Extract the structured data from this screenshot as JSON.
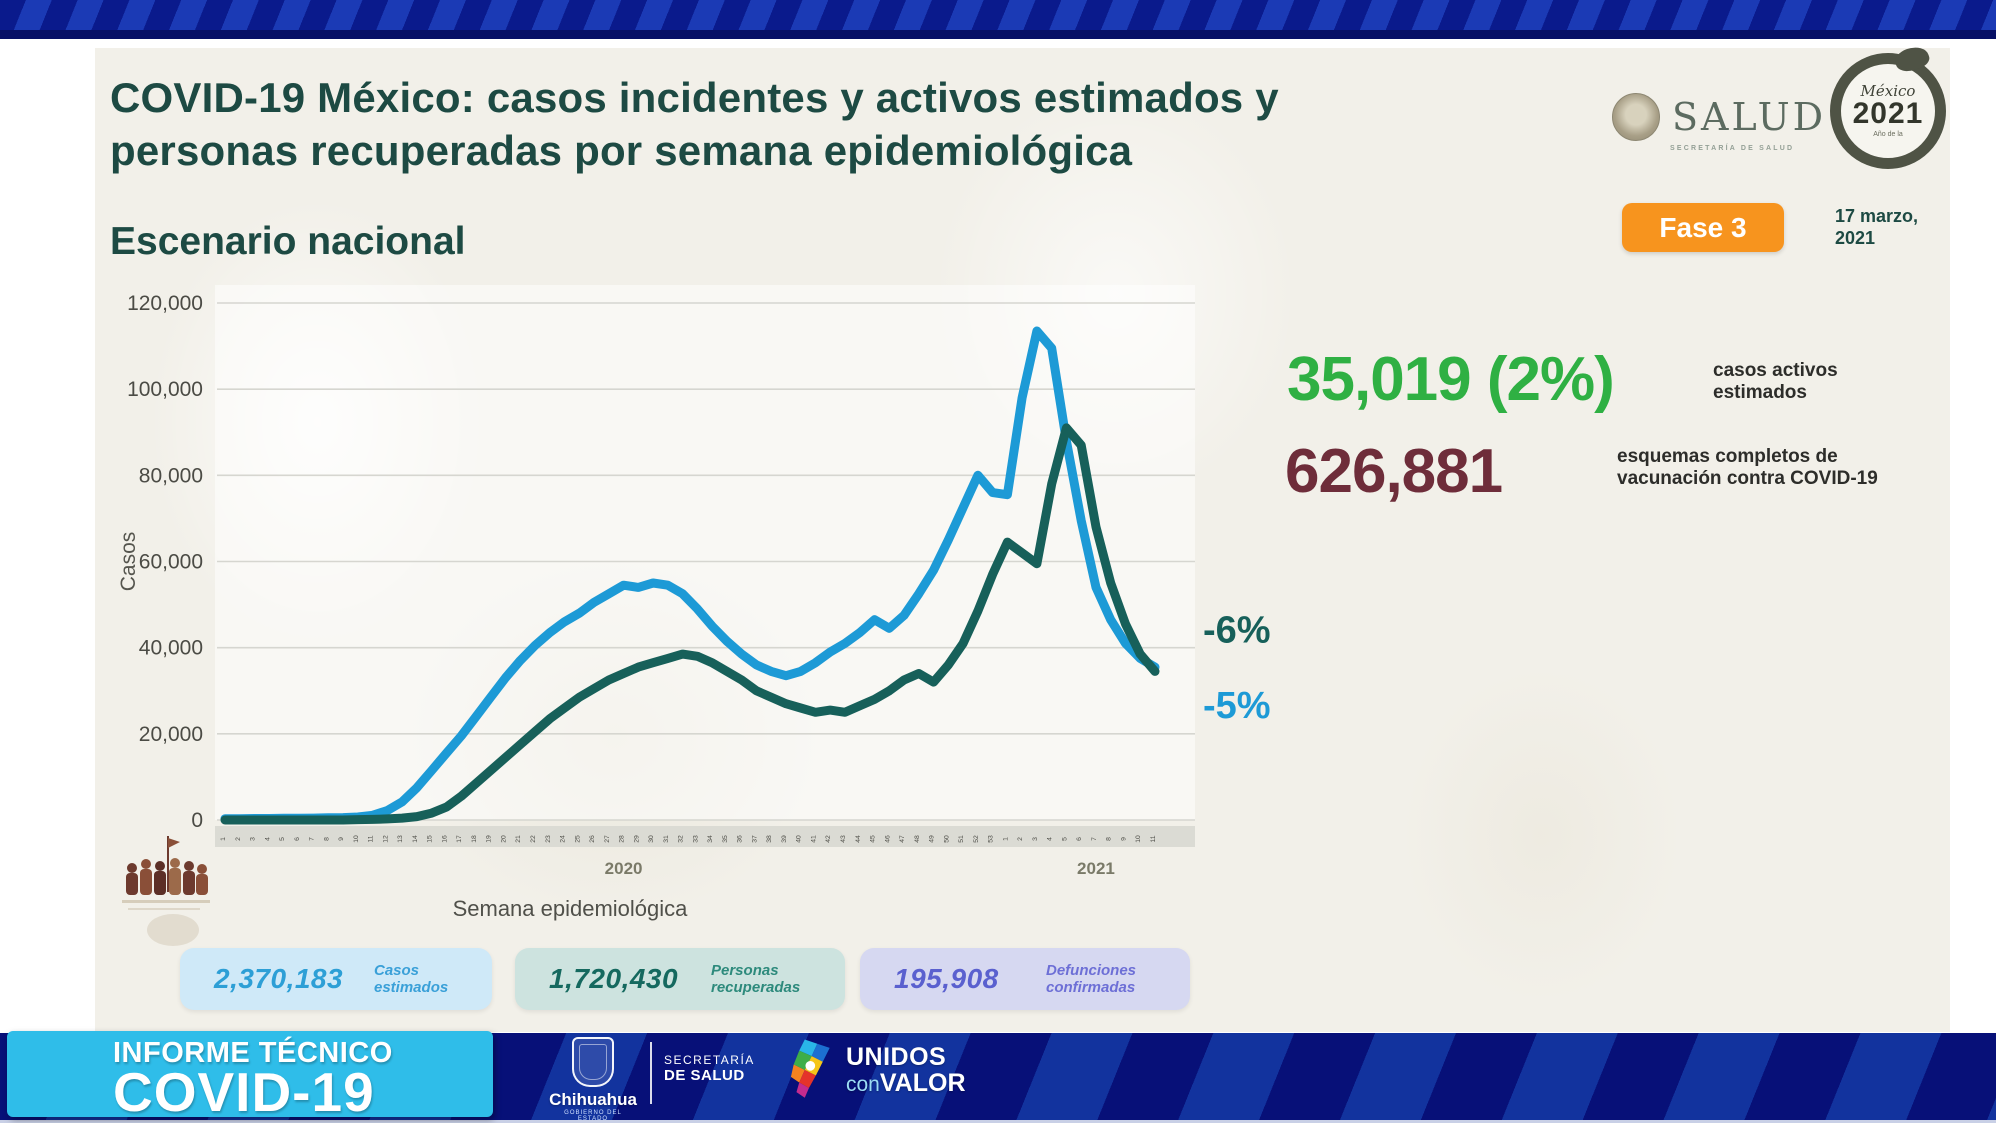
{
  "header": {
    "title_line1": "COVID-19 México: casos incidentes y activos estimados y",
    "title_line2": "personas recuperadas por semana epidemiológica",
    "subtitle": "Escenario nacional",
    "salud": {
      "wordmark": "SALUD",
      "caption": "SECRETARÍA DE SALUD"
    },
    "mexico_badge": {
      "line1": "México",
      "line2": "2021",
      "line3": "Año de la"
    },
    "fase_badge": "Fase 3",
    "date_line1": "17 marzo,",
    "date_line2": "2021"
  },
  "chart_data": {
    "type": "line",
    "title": "Escenario nacional",
    "xlabel": "Semana epidemiológica",
    "ylabel": "Casos",
    "ylim": [
      0,
      120000
    ],
    "yticks": [
      0,
      20000,
      40000,
      60000,
      80000,
      100000,
      120000
    ],
    "ytick_labels": [
      "0",
      "20,000",
      "40,000",
      "60,000",
      "80,000",
      "100,000",
      "120,000"
    ],
    "grid": true,
    "legend_position": "none",
    "x_groups": [
      {
        "year": "2020",
        "weeks": [
          1,
          2,
          3,
          4,
          5,
          6,
          7,
          8,
          9,
          10,
          11,
          12,
          13,
          14,
          15,
          16,
          17,
          18,
          19,
          20,
          21,
          22,
          23,
          24,
          25,
          26,
          27,
          28,
          29,
          30,
          31,
          32,
          33,
          34,
          35,
          36,
          37,
          38,
          39,
          40,
          41,
          42,
          43,
          44,
          45,
          46,
          47,
          48,
          49,
          50,
          51,
          52,
          53
        ]
      },
      {
        "year": "2021",
        "weeks": [
          1,
          2,
          3,
          4,
          5,
          6,
          7,
          8,
          9,
          10,
          11
        ]
      }
    ],
    "series": [
      {
        "name": "Casos incidentes estimados",
        "color": "#1d9ad6",
        "values": [
          300,
          300,
          350,
          350,
          400,
          400,
          450,
          500,
          550,
          700,
          1100,
          2200,
          4200,
          7500,
          11500,
          15500,
          19500,
          24000,
          28500,
          33000,
          37000,
          40500,
          43500,
          46000,
          48000,
          50500,
          52500,
          54500,
          54000,
          55000,
          54500,
          52500,
          49000,
          45000,
          41500,
          38500,
          36000,
          34500,
          33500,
          34500,
          36500,
          39000,
          41000,
          43500,
          46500,
          44500,
          47500,
          52500,
          58000,
          65000,
          72500,
          80000,
          76000,
          75500,
          98000,
          113500,
          109500,
          88000,
          69500,
          54000,
          46500,
          41000,
          37500,
          35500
        ]
      },
      {
        "name": "Personas recuperadas",
        "color": "#17605a",
        "values": [
          0,
          0,
          0,
          0,
          0,
          0,
          0,
          0,
          0,
          100,
          150,
          250,
          450,
          800,
          1600,
          3000,
          5500,
          8500,
          11500,
          14500,
          17500,
          20500,
          23500,
          26000,
          28500,
          30500,
          32500,
          34000,
          35500,
          36500,
          37500,
          38500,
          38000,
          36500,
          34500,
          32500,
          30000,
          28500,
          27000,
          26000,
          25000,
          25500,
          25000,
          26500,
          28000,
          30000,
          32500,
          34000,
          32000,
          36000,
          41000,
          48500,
          57000,
          64500,
          62000,
          59500,
          78000,
          91000,
          87000,
          68000,
          55000,
          45500,
          38500,
          34500
        ]
      }
    ],
    "annotations": [
      {
        "text": "-6%",
        "color": "#17605a",
        "anchor_value": 44000
      },
      {
        "text": "-5%",
        "color": "#1d9ad6",
        "anchor_value": 26500
      }
    ]
  },
  "stats": {
    "active": {
      "value": "35,019 (2%)",
      "label": "casos activos estimados",
      "color": "#2fb043"
    },
    "vaccination": {
      "value": "626,881",
      "label": "esquemas completos de vacunación contra COVID-19",
      "color": "#6e2d3a"
    }
  },
  "summary_boxes": [
    {
      "value": "2,370,183",
      "label": "Casos estimados",
      "value_color": "#2d9fd6"
    },
    {
      "value": "1,720,430",
      "label": "Personas recuperadas",
      "value_color": "#15695f"
    },
    {
      "value": "195,908",
      "label": "Defunciones confirmadas",
      "value_color": "#5a60cf"
    }
  ],
  "footer": {
    "report_line1": "INFORME TÉCNICO",
    "report_line2": "COVID-19",
    "chihuahua_name": "Chihuahua",
    "chihuahua_sub": "GOBIERNO DEL ESTADO",
    "secretaria_line1": "SECRETARÍA",
    "secretaria_line2": "DE SALUD",
    "unidos_line1": "UNIDOS",
    "unidos_con": "con",
    "unidos_valor": "VALOR"
  }
}
